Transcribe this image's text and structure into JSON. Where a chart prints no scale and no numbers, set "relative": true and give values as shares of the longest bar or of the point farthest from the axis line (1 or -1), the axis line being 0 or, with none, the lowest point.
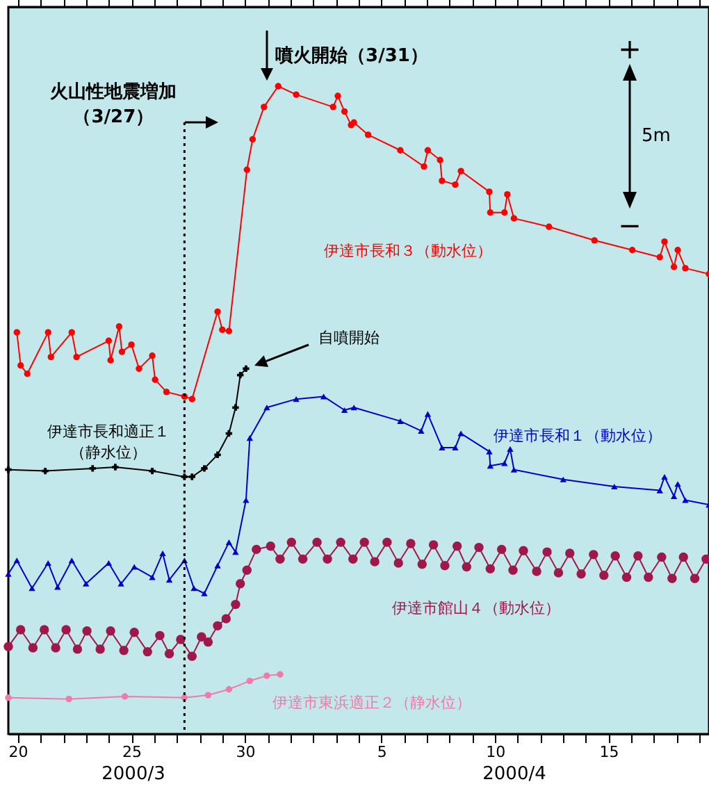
{
  "chart_data": {
    "type": "line",
    "relative": true,
    "grid": false,
    "xlim": [
      "2000-03-19T14:00",
      "2000-04-19T10:00"
    ],
    "xticks": [
      {
        "value": "2000-03-20T00:00",
        "label": "20"
      },
      {
        "value": "2000-03-21T00:00",
        "label": null
      },
      {
        "value": "2000-03-22T00:00",
        "label": null
      },
      {
        "value": "2000-03-23T00:00",
        "label": null
      },
      {
        "value": "2000-03-24T00:00",
        "label": null
      },
      {
        "value": "2000-03-25T00:00",
        "label": "25"
      },
      {
        "value": "2000-03-26T00:00",
        "label": null
      },
      {
        "value": "2000-03-27T00:00",
        "label": null
      },
      {
        "value": "2000-03-28T00:00",
        "label": null
      },
      {
        "value": "2000-03-29T00:00",
        "label": null
      },
      {
        "value": "2000-03-30T00:00",
        "label": "30"
      },
      {
        "value": "2000-03-31T00:00",
        "label": null
      },
      {
        "value": "2000-04-01T00:00",
        "label": null
      },
      {
        "value": "2000-04-02T00:00",
        "label": null
      },
      {
        "value": "2000-04-03T00:00",
        "label": null
      },
      {
        "value": "2000-04-04T00:00",
        "label": null
      },
      {
        "value": "2000-04-05T00:00",
        "label": "5"
      },
      {
        "value": "2000-04-06T00:00",
        "label": null
      },
      {
        "value": "2000-04-07T00:00",
        "label": null
      },
      {
        "value": "2000-04-08T00:00",
        "label": null
      },
      {
        "value": "2000-04-09T00:00",
        "label": null
      },
      {
        "value": "2000-04-10T00:00",
        "label": "10"
      },
      {
        "value": "2000-04-11T00:00",
        "label": null
      },
      {
        "value": "2000-04-12T00:00",
        "label": null
      },
      {
        "value": "2000-04-13T00:00",
        "label": null
      },
      {
        "value": "2000-04-14T00:00",
        "label": null
      },
      {
        "value": "2000-04-15T00:00",
        "label": "15"
      },
      {
        "value": "2000-04-16T00:00",
        "label": null
      },
      {
        "value": "2000-04-17T00:00",
        "label": null
      },
      {
        "value": "2000-04-18T00:00",
        "label": null
      },
      {
        "value": "2000-04-19T00:00",
        "label": null
      }
    ],
    "series": [
      {
        "name": "伊達市長和３（動水位）",
        "color": "#ff0000",
        "marker": "circle",
        "x": [
          "2000-03-19T23:00",
          "2000-03-20T03:00",
          "2000-03-20T10:00",
          "2000-03-21T08:00",
          "2000-03-21T11:00",
          "2000-03-22T09:00",
          "2000-03-22T14:00",
          "2000-03-24T00:00",
          "2000-03-24T02:00",
          "2000-03-24T11:00",
          "2000-03-24T14:00",
          "2000-03-25T00:00",
          "2000-03-25T08:00",
          "2000-03-25T22:00",
          "2000-03-26T01:00",
          "2000-03-26T13:00",
          "2000-03-27T08:00",
          "2000-03-27T16:00",
          "2000-03-28T19:00",
          "2000-03-29T00:00",
          "2000-03-29T07:00",
          "2000-03-30T02:00",
          "2000-03-30T08:00",
          "2000-03-30T20:00",
          "2000-03-31T11:00",
          "2000-04-01T06:00",
          "2000-04-02T21:00",
          "2000-04-03T02:00",
          "2000-04-03T09:00",
          "2000-04-03T16:00",
          "2000-04-03T19:00",
          "2000-04-04T10:00",
          "2000-04-05T20:00",
          "2000-04-06T21:00",
          "2000-04-07T01:00",
          "2000-04-07T14:00",
          "2000-04-07T16:00",
          "2000-04-08T06:00",
          "2000-04-08T12:00",
          "2000-04-09T18:00",
          "2000-04-09T19:00",
          "2000-04-10T10:00",
          "2000-04-10T13:00",
          "2000-04-10T20:00",
          "2000-04-12T09:00",
          "2000-04-14T09:00",
          "2000-04-16T01:00",
          "2000-04-17T06:00",
          "2000-04-17T11:00",
          "2000-04-17T21:00",
          "2000-04-18T01:00",
          "2000-04-18T09:00",
          "2000-04-19T10:00"
        ],
        "values": [
          0.62,
          0.569,
          0.556,
          0.62,
          0.582,
          0.62,
          0.582,
          0.607,
          0.577,
          0.629,
          0.59,
          0.601,
          0.564,
          0.584,
          0.547,
          0.528,
          0.521,
          0.517,
          0.652,
          0.624,
          0.622,
          0.871,
          0.918,
          0.968,
          1.0,
          0.987,
          0.968,
          0.985,
          0.961,
          0.94,
          0.944,
          0.925,
          0.901,
          0.876,
          0.901,
          0.886,
          0.854,
          0.848,
          0.869,
          0.837,
          0.805,
          0.805,
          0.833,
          0.796,
          0.783,
          0.762,
          0.747,
          0.736,
          0.76,
          0.721,
          0.747,
          0.719,
          0.71
        ]
      },
      {
        "name": "伊達市長和適正１（静水位）",
        "color": "#000000",
        "marker": "cross",
        "x": [
          "2000-03-19T14:00",
          "2000-03-21T05:00",
          "2000-03-23T07:00",
          "2000-03-24T07:00",
          "2000-03-25T22:00",
          "2000-03-27T08:00",
          "2000-03-27T16:00",
          "2000-03-28T05:00",
          "2000-03-28T19:00",
          "2000-03-29T07:00",
          "2000-03-29T14:00",
          "2000-03-29T19:00",
          "2000-03-30T01:00"
        ],
        "values": [
          0.408,
          0.406,
          0.41,
          0.412,
          0.406,
          0.397,
          0.397,
          0.41,
          0.431,
          0.464,
          0.504,
          0.554,
          0.564
        ]
      },
      {
        "name": "伊達市長和１（動水位）",
        "color": "#0000cc",
        "marker": "triangle",
        "x": [
          "2000-03-19T14:00",
          "2000-03-19T23:00",
          "2000-03-20T15:00",
          "2000-03-21T08:00",
          "2000-03-21T18:00",
          "2000-03-22T09:00",
          "2000-03-23T00:00",
          "2000-03-24T00:00",
          "2000-03-24T13:00",
          "2000-03-25T03:00",
          "2000-03-25T22:00",
          "2000-03-26T09:00",
          "2000-03-26T16:00",
          "2000-03-27T08:00",
          "2000-03-27T18:00",
          "2000-03-28T05:00",
          "2000-03-28T19:00",
          "2000-03-29T07:00",
          "2000-03-29T14:00",
          "2000-03-30T01:00",
          "2000-03-30T05:00",
          "2000-03-30T23:00",
          "2000-04-01T06:00",
          "2000-04-02T11:00",
          "2000-04-03T09:00",
          "2000-04-03T19:00",
          "2000-04-05T20:00",
          "2000-04-06T18:00",
          "2000-04-07T01:00",
          "2000-04-07T16:00",
          "2000-04-08T06:00",
          "2000-04-08T12:00",
          "2000-04-09T18:00",
          "2000-04-09T19:00",
          "2000-04-10T10:00",
          "2000-04-10T16:00",
          "2000-04-10T20:00",
          "2000-04-13T00:00",
          "2000-04-15T06:00",
          "2000-04-17T06:00",
          "2000-04-17T11:00",
          "2000-04-17T21:00",
          "2000-04-18T01:00",
          "2000-04-18T09:00",
          "2000-04-19T10:00"
        ],
        "values": [
          0.247,
          0.268,
          0.225,
          0.264,
          0.227,
          0.268,
          0.232,
          0.264,
          0.232,
          0.258,
          0.242,
          0.279,
          0.238,
          0.268,
          0.225,
          0.217,
          0.26,
          0.296,
          0.281,
          0.361,
          0.457,
          0.504,
          0.517,
          0.521,
          0.5,
          0.504,
          0.483,
          0.468,
          0.494,
          0.442,
          0.442,
          0.464,
          0.436,
          0.414,
          0.418,
          0.44,
          0.408,
          0.393,
          0.382,
          0.376,
          0.397,
          0.367,
          0.386,
          0.361,
          0.354
        ]
      },
      {
        "name": "伊達市館山４（動水位）",
        "color": "#a0184a",
        "marker": "circle",
        "x": [
          "2000-03-19T14:00",
          "2000-03-20T03:00",
          "2000-03-20T16:00",
          "2000-03-21T04:00",
          "2000-03-21T16:00",
          "2000-03-22T03:00",
          "2000-03-22T15:00",
          "2000-03-23T01:00",
          "2000-03-23T15:00",
          "2000-03-24T02:00",
          "2000-03-24T16:00",
          "2000-03-25T03:00",
          "2000-03-25T17:00",
          "2000-03-26T06:00",
          "2000-03-26T16:00",
          "2000-03-27T04:00",
          "2000-03-27T16:00",
          "2000-03-28T02:00",
          "2000-03-28T09:00",
          "2000-03-28T19:00",
          "2000-03-29T04:00",
          "2000-03-29T14:00",
          "2000-03-29T19:00",
          "2000-03-30T02:00",
          "2000-03-30T12:00",
          "2000-03-31T03:00",
          "2000-03-31T13:00",
          "2000-04-01T01:00",
          "2000-04-01T13:00",
          "2000-04-02T04:00",
          "2000-04-02T15:00",
          "2000-04-03T05:00",
          "2000-04-03T18:00",
          "2000-04-04T06:00",
          "2000-04-04T17:00",
          "2000-04-05T06:00",
          "2000-04-05T18:00",
          "2000-04-06T07:00",
          "2000-04-06T19:00",
          "2000-04-07T07:00",
          "2000-04-07T19:00",
          "2000-04-08T08:00",
          "2000-04-08T18:00",
          "2000-04-09T07:00",
          "2000-04-09T19:00",
          "2000-04-10T07:00",
          "2000-04-10T19:00",
          "2000-04-11T06:00",
          "2000-04-11T20:00",
          "2000-04-12T07:00",
          "2000-04-12T19:00",
          "2000-04-13T07:00",
          "2000-04-13T19:00",
          "2000-04-14T08:00",
          "2000-04-14T19:00",
          "2000-04-15T07:00",
          "2000-04-15T19:00",
          "2000-04-16T07:00",
          "2000-04-16T18:00",
          "2000-04-17T08:00",
          "2000-04-17T19:00",
          "2000-04-18T07:00",
          "2000-04-18T19:00",
          "2000-04-19T07:00"
        ],
        "values": [
          0.135,
          0.161,
          0.133,
          0.161,
          0.133,
          0.161,
          0.131,
          0.159,
          0.131,
          0.159,
          0.129,
          0.157,
          0.127,
          0.152,
          0.124,
          0.146,
          0.12,
          0.15,
          0.142,
          0.167,
          0.178,
          0.2,
          0.232,
          0.253,
          0.285,
          0.29,
          0.27,
          0.296,
          0.27,
          0.296,
          0.27,
          0.296,
          0.27,
          0.296,
          0.266,
          0.296,
          0.264,
          0.294,
          0.262,
          0.292,
          0.26,
          0.29,
          0.258,
          0.288,
          0.255,
          0.285,
          0.253,
          0.283,
          0.251,
          0.281,
          0.249,
          0.279,
          0.247,
          0.277,
          0.245,
          0.275,
          0.242,
          0.275,
          0.242,
          0.273,
          0.24,
          0.273,
          0.24,
          0.27
        ]
      },
      {
        "name": "伊達市東浜適正２（静水位）",
        "color": "#f07aa8",
        "marker": "circle",
        "x": [
          "2000-03-19T14:00",
          "2000-03-22T06:00",
          "2000-03-24T17:00",
          "2000-03-27T08:00",
          "2000-03-28T09:00",
          "2000-03-29T07:00",
          "2000-03-30T05:00",
          "2000-03-30T23:00",
          "2000-03-31T13:00"
        ],
        "values": [
          0.056,
          0.054,
          0.058,
          0.056,
          0.06,
          0.069,
          0.082,
          0.09,
          0.092
        ]
      }
    ],
    "ref_lines": [
      {
        "axis": "x",
        "value": "2000-03-27T08:00",
        "label": "火山性地震増加（3/27）",
        "line_style": "dotted",
        "color": "#000000"
      }
    ],
    "annotations": [
      "噴火開始（3/31）",
      "自噴開始",
      "5m",
      "+",
      "−",
      "2000/3",
      "2000/4"
    ]
  }
}
